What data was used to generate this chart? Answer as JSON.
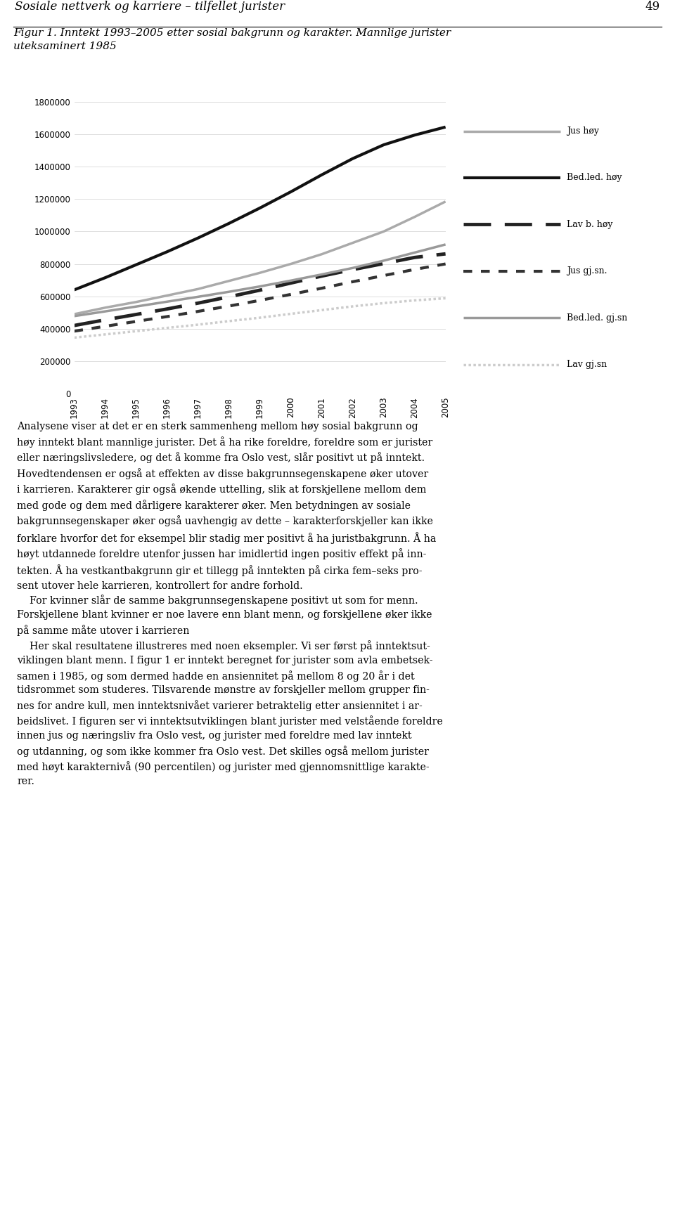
{
  "title": "Figur 1. Inntekt 1993–2005 etter sosial bakgrunn og karakter. Mannlige jurister\nuteksaminert 1985",
  "header": "Sosiale nettverk og karriere – tilfellet jurister",
  "page_number": "49",
  "years": [
    1993,
    1994,
    1995,
    1996,
    1997,
    1998,
    1999,
    2000,
    2001,
    2002,
    2003,
    2004,
    2005
  ],
  "series": {
    "Jus høy": {
      "values": [
        490000,
        530000,
        565000,
        605000,
        645000,
        695000,
        745000,
        800000,
        860000,
        930000,
        1000000,
        1090000,
        1185000
      ],
      "color": "#aaaaaa",
      "linewidth": 2.5,
      "linestyle": "solid"
    },
    "Bed.led. høy": {
      "values": [
        640000,
        715000,
        795000,
        875000,
        960000,
        1050000,
        1145000,
        1245000,
        1350000,
        1450000,
        1535000,
        1595000,
        1645000
      ],
      "color": "#111111",
      "linewidth": 3.0,
      "linestyle": "solid"
    },
    "Lav b. høy": {
      "values": [
        420000,
        455000,
        488000,
        522000,
        558000,
        597000,
        638000,
        682000,
        725000,
        765000,
        802000,
        840000,
        862000
      ],
      "color": "#222222",
      "linewidth": 3.5,
      "linestyle": "dashed"
    },
    "Jus gj.sn.": {
      "values": [
        385000,
        415000,
        445000,
        475000,
        507000,
        540000,
        575000,
        612000,
        650000,
        690000,
        728000,
        766000,
        800000
      ],
      "color": "#333333",
      "linewidth": 3.0,
      "linestyle": "dashdot"
    },
    "Bed.led. gj.sn": {
      "values": [
        478000,
        507000,
        537000,
        567000,
        597000,
        628000,
        661000,
        697000,
        735000,
        775000,
        820000,
        870000,
        920000
      ],
      "color": "#999999",
      "linewidth": 2.5,
      "linestyle": "solid"
    },
    "Lav gj.sn": {
      "values": [
        345000,
        365000,
        385000,
        405000,
        425000,
        447000,
        468000,
        492000,
        515000,
        538000,
        558000,
        575000,
        588000
      ],
      "color": "#cccccc",
      "linewidth": 2.5,
      "linestyle": "dotted_dense"
    }
  },
  "ylim": [
    0,
    1800000
  ],
  "yticks": [
    0,
    200000,
    400000,
    600000,
    800000,
    1000000,
    1200000,
    1400000,
    1600000,
    1800000
  ],
  "body_text_para1": "Analysene viser at det er en sterk sammenheng mellom høy sosial bakgrunn og\nhøy inntekt blant mannlige jurister. Det å ha rike foreldre, foreldre som er jurister\neller næringslivsledere, og det å komme fra Oslo vest, slår positivt ut på inntekt.\nHovedtendensen er også at effekten av disse bakgrunnsegenskapene øker utover\ni karrieren. Karakterer gir også økende uttelling, slik at forskjellene mellom dem\nmed gode og dem med dårligere karakterer øker. Men betydningen av sosiale\nbakgrunnsegenskaper øker også uavhengig av dette – karakterforskjeller kan ikke\nforklare hvorfor det for eksempel blir stadig mer positivt å ha juristbakgrunn. Å ha\nhøyt utdannede foreldre utenfor jussen har imidlertid ingen positiv effekt på inn-\ntekten. Å ha vestkantbakgrunn gir et tillegg på inntekten på cirka fem–seks pro-\nsent utover hele karrieren, kontrollert for andre forhold.",
  "body_text_para2": "    For kvinner slår de samme bakgrunnsegenskapene positivt ut som for menn.\nForskjellene blant kvinner er noe lavere enn blant menn, og forskjellene øker ikke\npå samme måte utover i karrieren",
  "body_text_para3": "    Her skal resultatene illustreres med noen eksempler. Vi ser først på inntektsut-\nviklingen blant menn. I figur 1 er inntekt beregnet for jurister som avla embetsek-\nsamen i 1985, og som dermed hadde en ansiennitet på mellom 8 og 20 år i det\ntidsrommet som studeres. Tilsvarende mønstre av forskjeller mellom grupper fin-\nnes for andre kull, men inntektsnivået varierer betraktelig etter ansiennitet i ar-\nbeidslivet. I figuren ser vi inntektsutviklingen blant jurister med velstående foreldre\ninnen jus og næringsliv fra Oslo vest, og jurister med foreldre med lav inntekt\nog utdanning, og som ikke kommer fra Oslo vest. Det skilles også mellom jurister\nmed høyt karakternivå (90 percentilen) og jurister med gjennomsnittlige karakte-\nrer."
}
